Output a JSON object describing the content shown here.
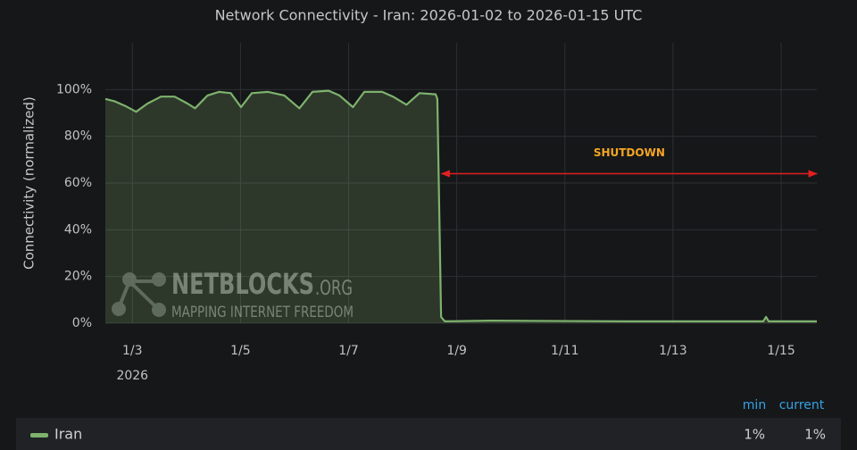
{
  "chart_data": {
    "type": "line",
    "title": "Network Connectivity - Iran: 2026-01-02 to 2026-01-15 UTC",
    "y_label": "Connectivity (normalized)",
    "x_sublabel": "2026",
    "xlim": [
      2.5,
      15.66
    ],
    "xticks": [
      {
        "value": 3,
        "label": "1/3"
      },
      {
        "value": 5,
        "label": "1/5"
      },
      {
        "value": 7,
        "label": "1/7"
      },
      {
        "value": 9,
        "label": "1/9"
      },
      {
        "value": 11,
        "label": "1/11"
      },
      {
        "value": 13,
        "label": "1/13"
      },
      {
        "value": 15,
        "label": "1/15"
      }
    ],
    "ylim": [
      0,
      120
    ],
    "yticks": [
      {
        "value": 0,
        "label": "0%"
      },
      {
        "value": 20,
        "label": "20%"
      },
      {
        "value": 40,
        "label": "40%"
      },
      {
        "value": 60,
        "label": "60%"
      },
      {
        "value": 80,
        "label": "80%"
      },
      {
        "value": 100,
        "label": "100%"
      }
    ],
    "grid": true,
    "series": [
      {
        "name": "Iran",
        "color": "#7eb26d",
        "x": [
          2.5,
          2.67,
          2.87,
          3.07,
          3.28,
          3.53,
          3.78,
          4.02,
          4.16,
          4.39,
          4.6,
          4.82,
          5.01,
          5.21,
          5.51,
          5.81,
          6.09,
          6.33,
          6.63,
          6.83,
          7.08,
          7.29,
          7.62,
          7.82,
          8.07,
          8.31,
          8.61,
          8.64,
          8.71,
          8.78,
          9.63,
          12.11,
          14.67,
          14.72,
          14.77,
          15.66
        ],
        "values": [
          96,
          95,
          93,
          90.5,
          94,
          97,
          97,
          94,
          92,
          97.5,
          99,
          98.5,
          92.5,
          98.5,
          99,
          97.5,
          92,
          99,
          99.5,
          97.5,
          92.5,
          99,
          99,
          97,
          93.5,
          98.5,
          98,
          96,
          2.7,
          0.8,
          1.1,
          0.8,
          0.8,
          2.7,
          0.8,
          0.8
        ]
      }
    ],
    "annotation": {
      "text": "SHUTDOWN",
      "x": [
        8.72,
        15.66
      ],
      "y": 64,
      "color": "#e02020",
      "text_color": "#f5a623"
    },
    "watermark": {
      "brand": "NETBLOCKS",
      "suffix": ".ORG",
      "tagline": "MAPPING INTERNET FREEDOM"
    },
    "legend_table": {
      "headers": [
        "min",
        "current"
      ],
      "values": [
        1,
        1
      ],
      "value_labels": [
        "1%",
        "1%"
      ]
    }
  }
}
